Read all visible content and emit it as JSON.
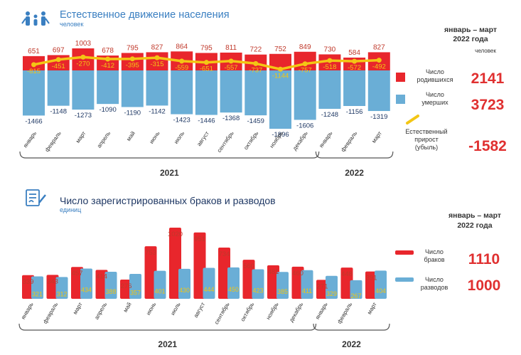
{
  "chart_data": [
    {
      "type": "bar",
      "title": "Естественное движение населения",
      "subtitle": "человек",
      "categories": [
        "январь",
        "февраль",
        "март",
        "апрель",
        "май",
        "июнь",
        "июль",
        "август",
        "сентябрь",
        "октябрь",
        "ноябрь",
        "декабрь",
        "январь",
        "февраль",
        "март"
      ],
      "year_groups": [
        {
          "label": "2021",
          "from": 0,
          "to": 11
        },
        {
          "label": "2022",
          "from": 12,
          "to": 14
        }
      ],
      "series": [
        {
          "name": "Число родившихся",
          "values": [
            651,
            697,
            1003,
            678,
            795,
            827,
            864,
            795,
            811,
            722,
            752,
            849,
            730,
            584,
            827
          ],
          "color": "#e8262c"
        },
        {
          "name": "Число умерших",
          "values": [
            -1466,
            -1148,
            -1273,
            -1090,
            -1190,
            -1142,
            -1423,
            -1446,
            -1368,
            -1459,
            -1896,
            -1606,
            -1248,
            -1156,
            -1319
          ],
          "color": "#6aaed6"
        },
        {
          "name": "Естественный прирост (убыль)",
          "values": [
            -815,
            -451,
            -270,
            -412,
            -395,
            -315,
            -559,
            -651,
            -557,
            -737,
            -1144,
            -757,
            -518,
            -572,
            -492
          ],
          "color": "#f3c614"
        }
      ],
      "summary": {
        "period": "январь – март 2022 года",
        "unit": "человек",
        "items": [
          {
            "label": "Число родившихся",
            "value": "2141"
          },
          {
            "label": "Число умерших",
            "value": "3723"
          },
          {
            "label": "Естественный прирост (убыль)",
            "value": "-1582"
          }
        ]
      }
    },
    {
      "type": "bar",
      "title": "Число зарегистрированных браков и разводов",
      "subtitle": "единиц",
      "categories": [
        "январь",
        "февраль",
        "март",
        "апрель",
        "май",
        "июнь",
        "июль",
        "август",
        "сентябрь",
        "октябрь",
        "ноябрь",
        "декабрь",
        "январь",
        "февраль",
        "март"
      ],
      "year_groups": [
        {
          "label": "2021",
          "from": 0,
          "to": 11
        },
        {
          "label": "2022",
          "from": 12,
          "to": 14
        }
      ],
      "series": [
        {
          "name": "Число браков",
          "values": [
            339,
            343,
            457,
            414,
            276,
            753,
            1020,
            951,
            734,
            560,
            481,
            460,
            271,
            448,
            391
          ],
          "color": "#e8262c"
        },
        {
          "name": "Число разводов",
          "values": [
            321,
            312,
            434,
            388,
            357,
            401,
            430,
            444,
            450,
            423,
            385,
            411,
            329,
            267,
            404
          ],
          "color": "#6aaed6"
        }
      ],
      "summary": {
        "period": "январь – март 2022 года",
        "items": [
          {
            "label": "Число браков",
            "value": "1110"
          },
          {
            "label": "Число разводов",
            "value": "1000"
          }
        ]
      }
    }
  ]
}
